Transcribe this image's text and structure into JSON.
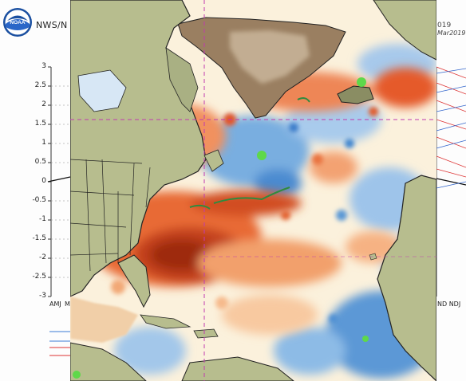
{
  "header": {
    "agency": "NWS/N",
    "date_line1": "019",
    "date_line2": "Mar2019"
  },
  "logo": {
    "text": "NOAA"
  },
  "background_chart": {
    "y_ticks": [
      "3",
      "2.5",
      "2",
      "1.5",
      "1",
      "0.5",
      "0",
      "-0.5",
      "-1",
      "-1.5",
      "-2",
      "-2.5",
      "-3"
    ],
    "x_tick_left": "AMJ",
    "x_tick_left2": "M",
    "x_tick_right": "ND NDJ"
  },
  "map": {
    "type": "sea surface temperature anomaly",
    "region": "North Atlantic",
    "colors": {
      "ocean_warm_strong": "#9e2b0e",
      "ocean_warm": "#e55a2a",
      "ocean_warm_light": "#f7b07c",
      "ocean_neutral": "#fbf3dc",
      "ocean_cool_light": "#bcd6ee",
      "ocean_cool": "#3d86cc",
      "land": "#b7bd8e",
      "greenland": "#9a7f61",
      "highlight_dot": "#5ed84a",
      "guide_line": "#c03ab0"
    }
  }
}
